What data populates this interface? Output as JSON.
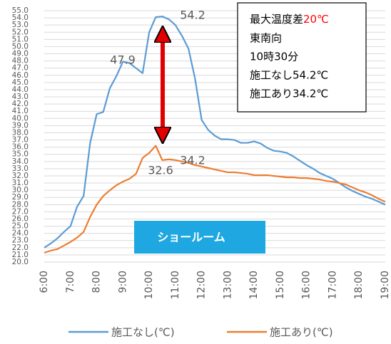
{
  "chart_data": {
    "type": "line",
    "categories": [
      "6:00",
      null,
      null,
      null,
      "7:00",
      null,
      null,
      null,
      "8:00",
      null,
      null,
      null,
      "9:00",
      null,
      null,
      null,
      "10:00",
      null,
      null,
      null,
      "11:00",
      null,
      null,
      null,
      "12:00",
      null,
      null,
      null,
      "13:00",
      null,
      null,
      null,
      "14:00",
      null,
      null,
      null,
      "15:00",
      null,
      null,
      null,
      "16:00",
      null,
      null,
      null,
      "17:00",
      null,
      null,
      null,
      "18:00",
      null,
      null,
      null,
      "19:00"
    ],
    "series": [
      {
        "name": "施工なし(℃)",
        "color": "#5b9bd5",
        "values": [
          22.0,
          22.6,
          23.3,
          24.2,
          25.0,
          27.7,
          29.2,
          36.6,
          40.6,
          40.9,
          44.2,
          45.9,
          47.9,
          47.7,
          47.0,
          46.3,
          52.0,
          54.1,
          54.2,
          53.8,
          53.0,
          51.5,
          49.7,
          45.5,
          39.8,
          38.4,
          37.6,
          37.1,
          37.1,
          37.0,
          36.6,
          36.6,
          36.8,
          36.5,
          35.9,
          35.5,
          35.4,
          35.2,
          34.7,
          34.1,
          33.5,
          33.0,
          32.4,
          32.0,
          31.6,
          31.0,
          30.4,
          29.9,
          29.5,
          29.1,
          28.8,
          28.4,
          28.0
        ]
      },
      {
        "name": "施工あり(℃)",
        "color": "#ed7d31",
        "values": [
          21.3,
          21.6,
          21.8,
          22.3,
          22.8,
          23.4,
          24.2,
          26.3,
          28.0,
          29.2,
          30.0,
          30.7,
          31.2,
          31.6,
          32.3,
          34.5,
          35.2,
          36.2,
          34.2,
          34.3,
          34.2,
          34.0,
          33.8,
          33.5,
          33.3,
          33.1,
          32.9,
          32.7,
          32.5,
          32.5,
          32.4,
          32.3,
          32.1,
          32.1,
          32.1,
          32.0,
          31.9,
          31.8,
          31.8,
          31.7,
          31.7,
          31.6,
          31.5,
          31.3,
          31.2,
          31.0,
          30.8,
          30.4,
          30.0,
          29.7,
          29.3,
          28.8,
          28.4
        ]
      }
    ],
    "ylim": [
      20,
      55
    ],
    "yticks": [
      {
        "value": 20,
        "label": "20.0"
      },
      {
        "value": 21,
        "label": "21.0"
      },
      {
        "value": 22,
        "label": "22.0"
      },
      {
        "value": 23,
        "label": "23.0"
      },
      {
        "value": 24,
        "label": "24.0"
      },
      {
        "value": 25,
        "label": "25.0"
      },
      {
        "value": 26,
        "label": "26.0"
      },
      {
        "value": 27,
        "label": "27.0"
      },
      {
        "value": 28,
        "label": "28.0"
      },
      {
        "value": 29,
        "label": "29.0"
      },
      {
        "value": 30,
        "label": "30.0"
      },
      {
        "value": 31,
        "label": "31.0"
      },
      {
        "value": 32,
        "label": "32.0"
      },
      {
        "value": 33,
        "label": "33.0"
      },
      {
        "value": 34,
        "label": "34.0"
      },
      {
        "value": 35,
        "label": "35.0"
      },
      {
        "value": 36,
        "label": "36.0"
      },
      {
        "value": 37,
        "label": "37.0"
      },
      {
        "value": 38,
        "label": "38.0"
      },
      {
        "value": 39,
        "label": "39.0"
      },
      {
        "value": 40,
        "label": "40.0"
      },
      {
        "value": 41,
        "label": "41.0"
      },
      {
        "value": 42,
        "label": "42.0"
      },
      {
        "value": 43,
        "label": "43.0"
      },
      {
        "value": 44,
        "label": "44.0"
      },
      {
        "value": 45,
        "label": "45.0"
      },
      {
        "value": 46,
        "label": "46.0"
      },
      {
        "value": 47,
        "label": "47.0"
      },
      {
        "value": 48,
        "label": "48.0"
      },
      {
        "value": 49,
        "label": "49.0"
      },
      {
        "value": 50,
        "label": "50.0"
      },
      {
        "value": 51,
        "label": "51.0"
      },
      {
        "value": 52,
        "label": "52.0"
      },
      {
        "value": 53,
        "label": "53.0"
      },
      {
        "value": 54,
        "label": "54.0"
      },
      {
        "value": 55,
        "label": "55.0"
      }
    ],
    "grid": true,
    "annotations": [
      "54.2",
      "47.9",
      "34.2",
      "32.6"
    ],
    "info_box": {
      "title": "最大温度差",
      "highlight": "20℃",
      "lines": [
        "東南向",
        "10時30分",
        "施工なし54.2℃",
        "施工あり34.2℃"
      ]
    },
    "tag": "ショールーム"
  }
}
